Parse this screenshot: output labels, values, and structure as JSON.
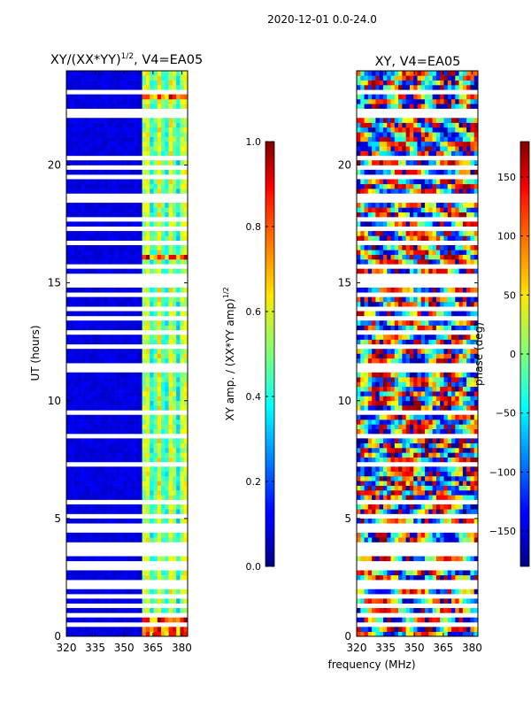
{
  "figure_title": "2020-12-01 0.0-24.0",
  "shared_xlabel": "frequency (MHz)",
  "chart_data": [
    {
      "type": "heatmap",
      "title": "XY/(XX*YY)",
      "title_exponent": "1/2",
      "title_suffix": ", V4=EA05",
      "xlabel": "",
      "ylabel": "UT (hours)",
      "xlim": [
        320,
        383
      ],
      "ylim": [
        0,
        24
      ],
      "xticks": [
        320,
        335,
        350,
        365,
        380
      ],
      "yticks": [
        0,
        5,
        10,
        15,
        20
      ],
      "colorbar": {
        "label": "XY amp. / (XX*YY amp)",
        "label_exponent": "1/2",
        "range": [
          0.0,
          1.0
        ],
        "ticks": [
          "0.0",
          "0.2",
          "0.4",
          "0.6",
          "0.8",
          "1.0"
        ],
        "colormap": "jet"
      }
    },
    {
      "type": "heatmap",
      "title": "XY, V4=EA05",
      "xlabel": "frequency (MHz)",
      "ylabel": "",
      "xlim": [
        320,
        383
      ],
      "ylim": [
        0,
        24
      ],
      "xticks": [
        320,
        335,
        350,
        365,
        380
      ],
      "yticks": [
        0,
        5,
        10,
        15,
        20
      ],
      "colorbar": {
        "label": "phase (deg)",
        "range": [
          -180,
          180
        ],
        "ticks": [
          "−150",
          "−100",
          "−50",
          "0",
          "50",
          "100",
          "150"
        ],
        "tick_values": [
          -150,
          -100,
          -50,
          0,
          50,
          100,
          150
        ],
        "colormap": "jet"
      }
    }
  ],
  "gaps_ut_hours": [
    0.42,
    0.55,
    0.9,
    1.3,
    1.65,
    2.15,
    2.35,
    2.95,
    3.15,
    3.45,
    3.65,
    3.95,
    4.2,
    4.45,
    4.75,
    5.1,
    5.4,
    5.75,
    6.2,
    7.0,
    7.35,
    8.5,
    9.2,
    9.55,
    10.2,
    11.3,
    11.55,
    12.35,
    12.6,
    12.95,
    13.2,
    13.5,
    13.85,
    14.2,
    14.55,
    14.85,
    15.1,
    15.35,
    15.7,
    16.4,
    16.75,
    17.25,
    17.75,
    18.0,
    18.45,
    18.7,
    19.0,
    19.45,
    19.9,
    20.3,
    21.0,
    21.4,
    21.8,
    22.1,
    22.35,
    22.6,
    23.1
  ]
}
